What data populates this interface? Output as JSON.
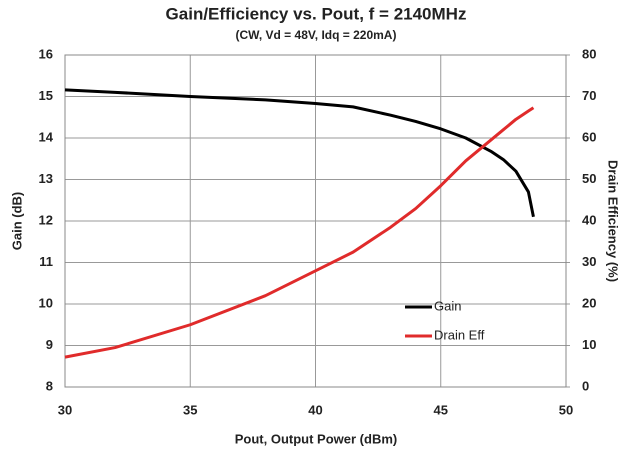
{
  "chart_data": {
    "type": "line",
    "title": "Gain/Efficiency vs. Pout, f = 2140MHz",
    "subtitle": "(CW, Vd = 48V, Idq = 220mA)",
    "x_label": "Pout, Output Power (dBm)",
    "y_label": "Gain (dB)",
    "y2_label": "Drain Efficiency (%)",
    "x": [
      30,
      32,
      35,
      38,
      40,
      41.5,
      43,
      44,
      45,
      46,
      47,
      47.5,
      48,
      48.5,
      48.7
    ],
    "series": [
      {
        "name": "Gain",
        "color": "#000000",
        "values": [
          15.16,
          15.1,
          15.0,
          14.92,
          14.83,
          14.75,
          14.55,
          14.4,
          14.22,
          14.0,
          13.68,
          13.48,
          13.2,
          12.7,
          12.1
        ]
      },
      {
        "name": "Drain Eff",
        "color": "#e02b2b",
        "axis": "y2",
        "values": [
          7.2,
          9.5,
          15,
          22,
          28,
          32.5,
          38.5,
          43,
          48.5,
          54.5,
          59.5,
          62,
          64.5,
          66.5,
          67.3
        ]
      }
    ],
    "xlim": [
      30,
      50
    ],
    "xticks": [
      30,
      35,
      40,
      45,
      50
    ],
    "ylim": [
      8,
      16
    ],
    "yticks": [
      8,
      9,
      10,
      11,
      12,
      13,
      14,
      15,
      16
    ],
    "y2lim": [
      0,
      80
    ],
    "y2ticks": [
      0,
      10,
      20,
      30,
      40,
      50,
      60,
      70,
      80
    ],
    "grid": true,
    "legend": "lower right"
  }
}
